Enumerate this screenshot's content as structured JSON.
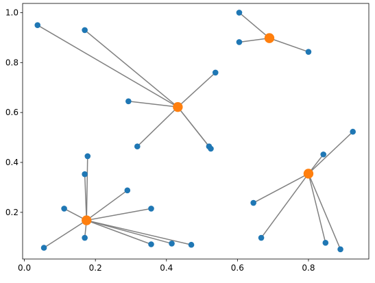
{
  "chart_data": {
    "type": "scatter",
    "title": "",
    "xlabel": "",
    "ylabel": "",
    "xlim": [
      -0.005,
      0.97
    ],
    "ylim": [
      0.013,
      1.037
    ],
    "x_ticks": [
      0.0,
      0.2,
      0.4,
      0.6,
      0.8
    ],
    "x_tick_labels": [
      "0.0",
      "0.2",
      "0.4",
      "0.6",
      "0.8"
    ],
    "y_ticks": [
      0.2,
      0.4,
      0.6,
      0.8,
      1.0
    ],
    "y_tick_labels": [
      "0.2",
      "0.4",
      "0.6",
      "0.8",
      "1.0"
    ],
    "grid": false,
    "legend": null,
    "colors": {
      "points": "#1f77b4",
      "centers": "#ff7f0e",
      "links": "#808080"
    },
    "clusters": [
      {
        "center": [
          0.432,
          0.622
        ],
        "points": [
          [
            0.037,
            0.95
          ],
          [
            0.17,
            0.93
          ],
          [
            0.538,
            0.76
          ],
          [
            0.293,
            0.645
          ],
          [
            0.318,
            0.464
          ],
          [
            0.52,
            0.464
          ],
          [
            0.525,
            0.455
          ]
        ]
      },
      {
        "center": [
          0.69,
          0.898
        ],
        "points": [
          [
            0.605,
            1.0
          ],
          [
            0.605,
            0.882
          ],
          [
            0.8,
            0.843
          ]
        ]
      },
      {
        "center": [
          0.175,
          0.168
        ],
        "points": [
          [
            0.178,
            0.425
          ],
          [
            0.17,
            0.353
          ],
          [
            0.29,
            0.288
          ],
          [
            0.112,
            0.215
          ],
          [
            0.357,
            0.215
          ],
          [
            0.17,
            0.098
          ],
          [
            0.357,
            0.072
          ],
          [
            0.415,
            0.075
          ],
          [
            0.47,
            0.07
          ],
          [
            0.055,
            0.058
          ]
        ]
      },
      {
        "center": [
          0.8,
          0.355
        ],
        "points": [
          [
            0.925,
            0.523
          ],
          [
            0.842,
            0.432
          ],
          [
            0.645,
            0.238
          ],
          [
            0.667,
            0.098
          ],
          [
            0.848,
            0.078
          ],
          [
            0.89,
            0.052
          ]
        ]
      }
    ]
  }
}
